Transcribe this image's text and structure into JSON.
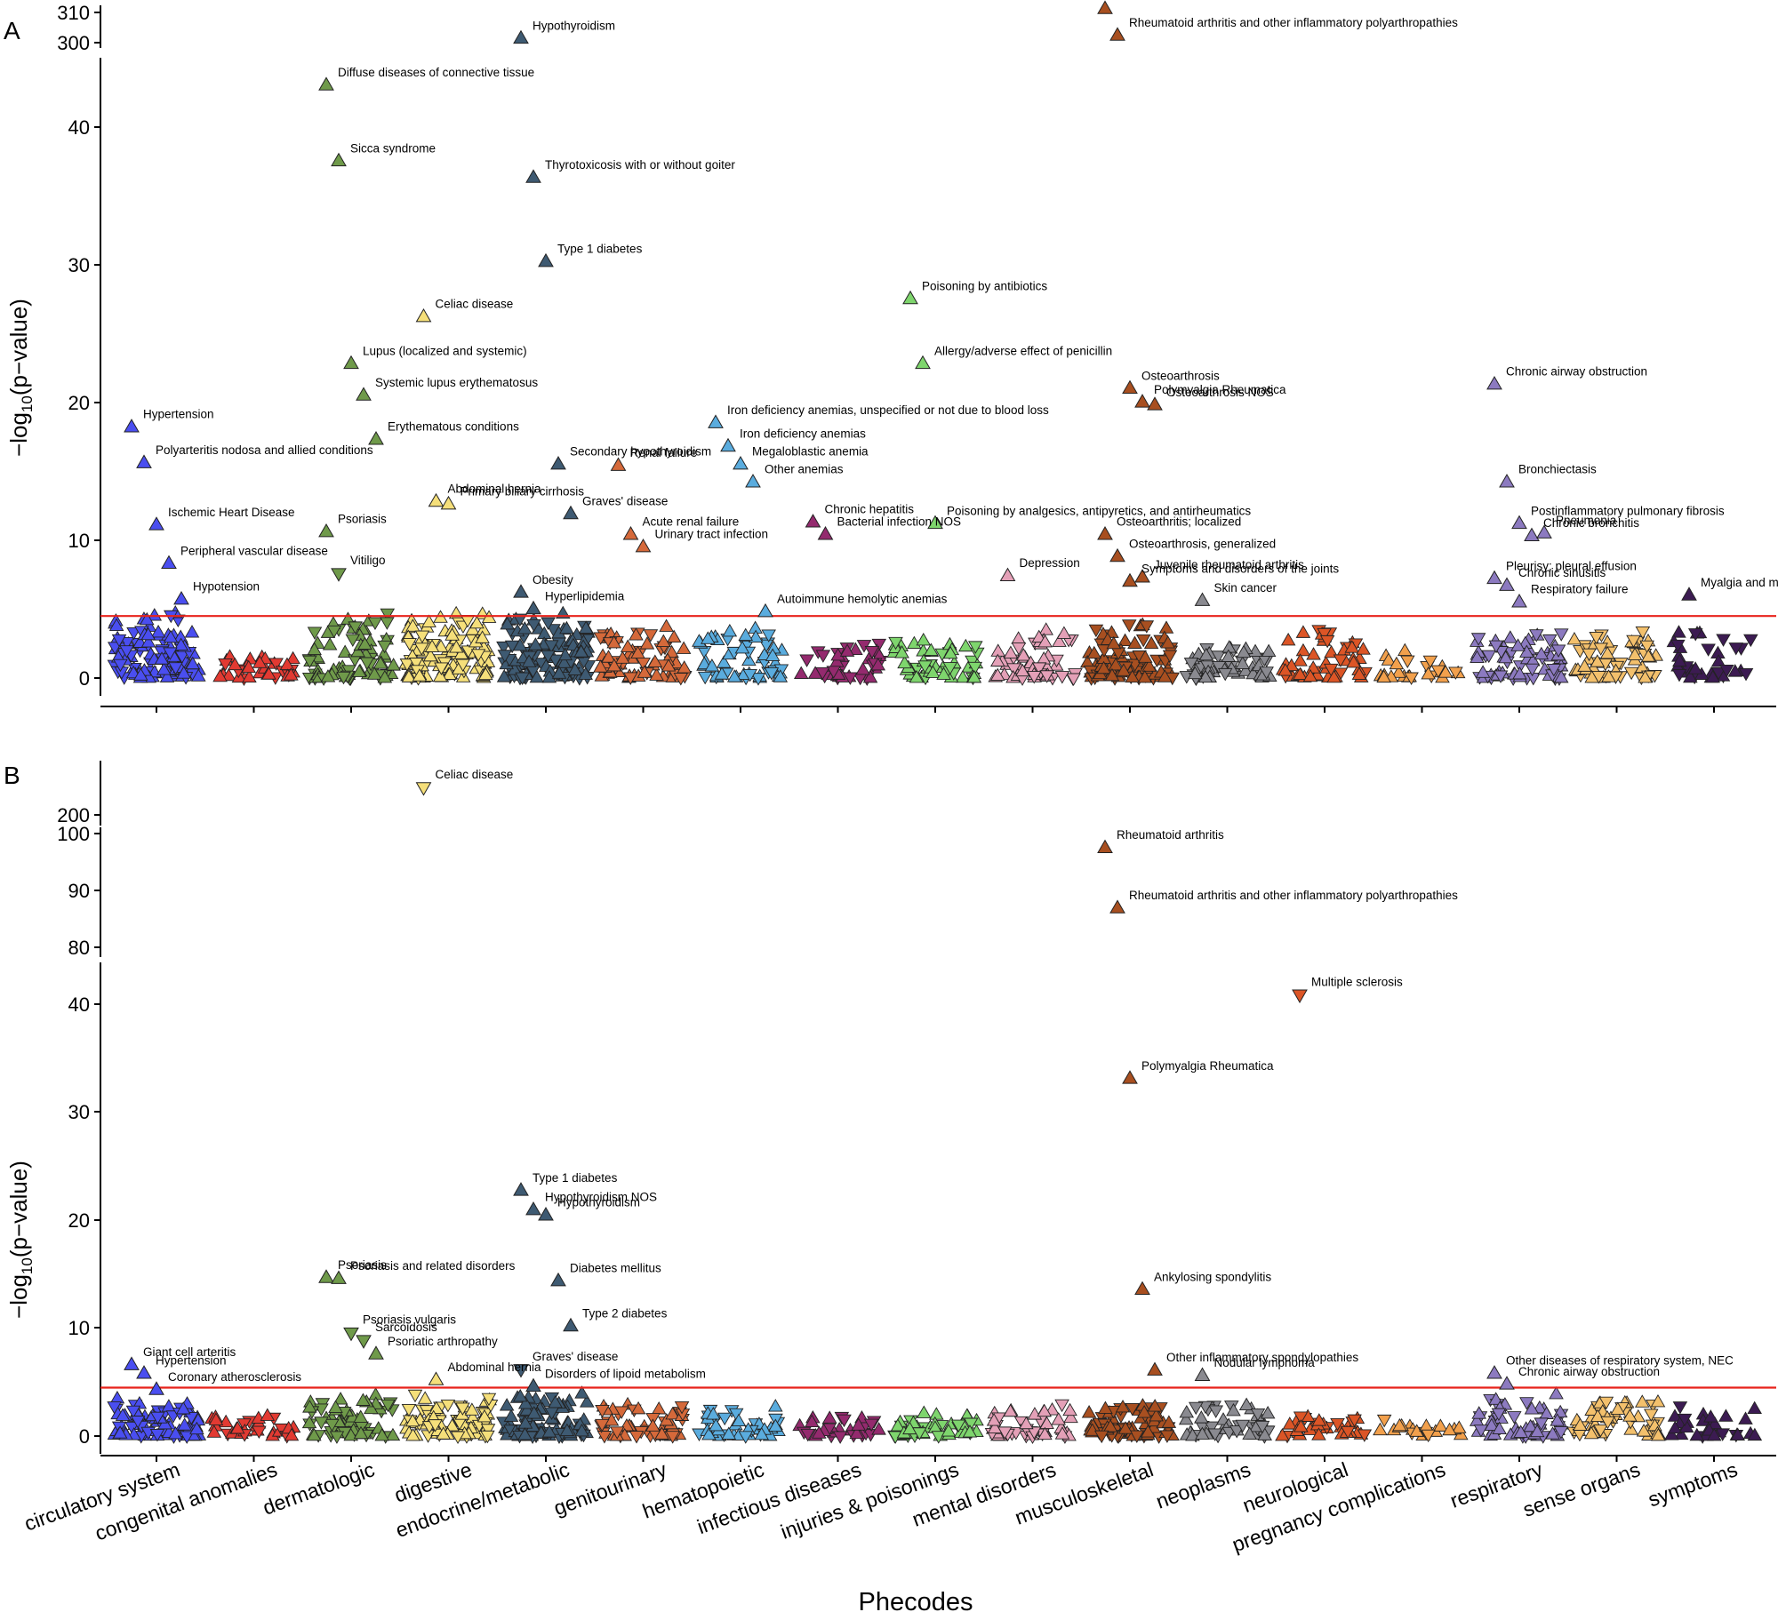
{
  "chart_data": {
    "type": "scatter",
    "xlabel": "Phecodes",
    "ylabel_main": "−log",
    "ylabel_sub": "10",
    "ylabel_tail": "(p−value)",
    "categories": [
      "circulatory system",
      "congenital anomalies",
      "dermatologic",
      "digestive",
      "endocrine/metabolic",
      "genitourinary",
      "hematopoietic",
      "infectious diseases",
      "injuries & poisonings",
      "mental disorders",
      "musculoskeletal",
      "neoplasms",
      "neurological",
      "pregnancy complications",
      "respiratory",
      "sense organs",
      "symptoms"
    ],
    "category_colors": [
      "#4a4ef0",
      "#e23a32",
      "#6f9a4a",
      "#f5df7a",
      "#3e5a72",
      "#d5693a",
      "#5aacde",
      "#942a6e",
      "#7ed56d",
      "#e4a0b7",
      "#a84f20",
      "#8a8a90",
      "#dc5526",
      "#f2a04c",
      "#8c7ac0",
      "#f3c06c",
      "#3c1b52"
    ],
    "threshold": 4.5,
    "panels": [
      {
        "letter": "A",
        "y_ticks_main": [
          "0",
          "10",
          "20",
          "30",
          "40"
        ],
        "y_ticks_upper": [
          "300",
          "310"
        ],
        "y_ranges": {
          "main": [
            0,
            45
          ],
          "upper": [
            299,
            311
          ]
        },
        "points": [
          {
            "label": "Hypothyroidism",
            "category": 4,
            "y": 301,
            "marker": "up"
          },
          {
            "label": "Rheumatoid arthritis",
            "category": 10,
            "y": 311,
            "marker": "up"
          },
          {
            "label": "Rheumatoid arthritis and other inflammatory polyarthropathies",
            "category": 10,
            "y": 302,
            "marker": "up"
          },
          {
            "label": "Diffuse diseases of connective tissue",
            "category": 2,
            "y": 43,
            "marker": "up"
          },
          {
            "label": "Sicca syndrome",
            "category": 2,
            "y": 37.5,
            "marker": "up"
          },
          {
            "label": "Thyrotoxicosis with or without goiter",
            "category": 4,
            "y": 36.3,
            "marker": "up"
          },
          {
            "label": "Type 1 diabetes",
            "category": 4,
            "y": 30.2,
            "marker": "up"
          },
          {
            "label": "Celiac disease",
            "category": 3,
            "y": 26.2,
            "marker": "up"
          },
          {
            "label": "Poisoning by antibiotics",
            "category": 8,
            "y": 27.5,
            "marker": "up"
          },
          {
            "label": "Allergy/adverse effect of penicillin",
            "category": 8,
            "y": 22.8,
            "marker": "up"
          },
          {
            "label": "Lupus (localized and systemic)",
            "category": 2,
            "y": 22.8,
            "marker": "up"
          },
          {
            "label": "Systemic lupus erythematosus",
            "category": 2,
            "y": 20.5,
            "marker": "up"
          },
          {
            "label": "Erythematous conditions",
            "category": 2,
            "y": 17.3,
            "marker": "up"
          },
          {
            "label": "Osteoarthrosis",
            "category": 10,
            "y": 21,
            "marker": "up"
          },
          {
            "label": "Polymyalgia Rheumatica",
            "category": 10,
            "y": 20,
            "marker": "up"
          },
          {
            "label": "Osteoarthrosis NOS",
            "category": 10,
            "y": 19.8,
            "marker": "up"
          },
          {
            "label": "Chronic airway obstruction",
            "category": 14,
            "y": 21.3,
            "marker": "up"
          },
          {
            "label": "Hypertension",
            "category": 0,
            "y": 18.2,
            "marker": "up"
          },
          {
            "label": "Polyarteritis nodosa and allied conditions",
            "category": 0,
            "y": 15.6,
            "marker": "up"
          },
          {
            "label": "Iron deficiency anemias, unspecified or not due to blood loss",
            "category": 6,
            "y": 18.5,
            "marker": "up"
          },
          {
            "label": "Iron deficiency anemias",
            "category": 6,
            "y": 16.8,
            "marker": "up"
          },
          {
            "label": "Megaloblastic anemia",
            "category": 6,
            "y": 15.5,
            "marker": "up"
          },
          {
            "label": "Other anemias",
            "category": 6,
            "y": 14.2,
            "marker": "up"
          },
          {
            "label": "Secondary hypothyroidism",
            "category": 4,
            "y": 15.5,
            "marker": "up"
          },
          {
            "label": "Renal failure",
            "category": 5,
            "y": 15.4,
            "marker": "up"
          },
          {
            "label": "Abdominal hernia",
            "category": 3,
            "y": 12.8,
            "marker": "up"
          },
          {
            "label": "Primary biliary cirrhosis",
            "category": 3,
            "y": 12.6,
            "marker": "up"
          },
          {
            "label": "Graves' disease",
            "category": 4,
            "y": 11.9,
            "marker": "up"
          },
          {
            "label": "Acute renal failure",
            "category": 5,
            "y": 10.4,
            "marker": "up"
          },
          {
            "label": "Urinary tract infection",
            "category": 5,
            "y": 9.5,
            "marker": "up"
          },
          {
            "label": "Psoriasis",
            "category": 2,
            "y": 10.6,
            "marker": "up"
          },
          {
            "label": "Vitiligo",
            "category": 2,
            "y": 7.6,
            "marker": "down"
          },
          {
            "label": "Ischemic Heart Disease",
            "category": 0,
            "y": 11.1,
            "marker": "up"
          },
          {
            "label": "Peripheral vascular disease",
            "category": 0,
            "y": 8.3,
            "marker": "up"
          },
          {
            "label": "Hypotension",
            "category": 0,
            "y": 5.7,
            "marker": "up"
          },
          {
            "label": "Obesity",
            "category": 4,
            "y": 6.2,
            "marker": "up"
          },
          {
            "label": "Hyperlipidemia",
            "category": 4,
            "y": 5,
            "marker": "up"
          },
          {
            "label": "Chronic hepatitis",
            "category": 7,
            "y": 11.3,
            "marker": "up"
          },
          {
            "label": "Bacterial infection NOS",
            "category": 7,
            "y": 10.4,
            "marker": "up"
          },
          {
            "label": "Poisoning by analgesics, antipyretics, and antirheumatics",
            "category": 8,
            "y": 11.2,
            "marker": "up"
          },
          {
            "label": "Autoimmune hemolytic anemias",
            "category": 6,
            "y": 4.8,
            "marker": "up"
          },
          {
            "label": "Depression",
            "category": 9,
            "y": 7.4,
            "marker": "up"
          },
          {
            "label": "Osteoarthritis; localized",
            "category": 10,
            "y": 10.4,
            "marker": "up"
          },
          {
            "label": "Osteoarthrosis, generalized",
            "category": 10,
            "y": 8.8,
            "marker": "up"
          },
          {
            "label": "Symptoms and disorders of the joints",
            "category": 10,
            "y": 7.0,
            "marker": "up"
          },
          {
            "label": "Juvenile rheumatoid arthritis",
            "category": 10,
            "y": 7.3,
            "marker": "up"
          },
          {
            "label": "Skin cancer",
            "category": 11,
            "y": 5.6,
            "marker": "up"
          },
          {
            "label": "Bronchiectasis",
            "category": 14,
            "y": 14.2,
            "marker": "up"
          },
          {
            "label": "Postinflammatory pulmonary fibrosis",
            "category": 14,
            "y": 11.2,
            "marker": "up"
          },
          {
            "label": "Chronic bronchitis",
            "category": 14,
            "y": 10.3,
            "marker": "up"
          },
          {
            "label": "Pneumonia",
            "category": 14,
            "y": 10.5,
            "marker": "up"
          },
          {
            "label": "Pleurisy; pleural effusion",
            "category": 14,
            "y": 7.2,
            "marker": "up"
          },
          {
            "label": "Chronic sinusitis",
            "category": 14,
            "y": 6.7,
            "marker": "up"
          },
          {
            "label": "Respiratory failure",
            "category": 14,
            "y": 5.5,
            "marker": "up"
          },
          {
            "label": "Myalgia and myositis unspecified",
            "category": 16,
            "y": 6.0,
            "marker": "up"
          }
        ]
      },
      {
        "letter": "B",
        "y_ticks_main": [
          "0",
          "10",
          "20",
          "30",
          "40"
        ],
        "y_ticks_mid": [
          "80",
          "90",
          "100"
        ],
        "y_ticks_upper": [
          "200"
        ],
        "y_ranges": {
          "main": [
            0,
            44
          ],
          "mid": [
            78,
            101
          ],
          "upper": [
            190,
            210
          ]
        },
        "points": [
          {
            "label": "Celiac disease",
            "category": 3,
            "y": 202,
            "marker": "down"
          },
          {
            "label": "Rheumatoid arthritis",
            "category": 10,
            "y": 97.8,
            "marker": "up"
          },
          {
            "label": "Rheumatoid arthritis and other inflammatory polyarthropathies",
            "category": 10,
            "y": 86.5,
            "marker": "up"
          },
          {
            "label": "Multiple sclerosis",
            "category": 12,
            "y": 41,
            "marker": "down"
          },
          {
            "label": "Polymyalgia Rheumatica",
            "category": 10,
            "y": 33.2,
            "marker": "up"
          },
          {
            "label": "Type 1 diabetes",
            "category": 4,
            "y": 22.8,
            "marker": "up"
          },
          {
            "label": "Hypothyroidism NOS",
            "category": 4,
            "y": 21,
            "marker": "up"
          },
          {
            "label": "Hypothyroidism",
            "category": 4,
            "y": 20.5,
            "marker": "up"
          },
          {
            "label": "Psoriasis",
            "category": 2,
            "y": 14.7,
            "marker": "up"
          },
          {
            "label": "Psoriasis and related disorders",
            "category": 2,
            "y": 14.6,
            "marker": "up"
          },
          {
            "label": "Diabetes mellitus",
            "category": 4,
            "y": 14.4,
            "marker": "up"
          },
          {
            "label": "Ankylosing spondylitis",
            "category": 10,
            "y": 13.6,
            "marker": "up"
          },
          {
            "label": "Type 2 diabetes",
            "category": 4,
            "y": 10.2,
            "marker": "up"
          },
          {
            "label": "Psoriasis vulgaris",
            "category": 2,
            "y": 9.6,
            "marker": "down"
          },
          {
            "label": "Sarcoidosis",
            "category": 2,
            "y": 8.9,
            "marker": "down"
          },
          {
            "label": "Psoriatic arthropathy",
            "category": 2,
            "y": 7.6,
            "marker": "up"
          },
          {
            "label": "Giant cell arteritis",
            "category": 0,
            "y": 6.6,
            "marker": "up"
          },
          {
            "label": "Hypertension",
            "category": 0,
            "y": 5.8,
            "marker": "up"
          },
          {
            "label": "Coronary atherosclerosis",
            "category": 0,
            "y": 4.3,
            "marker": "up"
          },
          {
            "label": "Abdominal hernia",
            "category": 3,
            "y": 5.2,
            "marker": "up"
          },
          {
            "label": "Graves' disease",
            "category": 4,
            "y": 6.2,
            "marker": "down"
          },
          {
            "label": "Disorders of lipoid metabolism",
            "category": 4,
            "y": 4.6,
            "marker": "up"
          },
          {
            "label": "Other inflammatory spondylopathies",
            "category": 10,
            "y": 6.1,
            "marker": "up"
          },
          {
            "label": "Nodular lymphoma",
            "category": 11,
            "y": 5.6,
            "marker": "up"
          },
          {
            "label": "Other diseases of respiratory system, NEC",
            "category": 14,
            "y": 5.8,
            "marker": "up"
          },
          {
            "label": "Chronic airway obstruction",
            "category": 14,
            "y": 4.8,
            "marker": "up"
          }
        ]
      }
    ]
  }
}
